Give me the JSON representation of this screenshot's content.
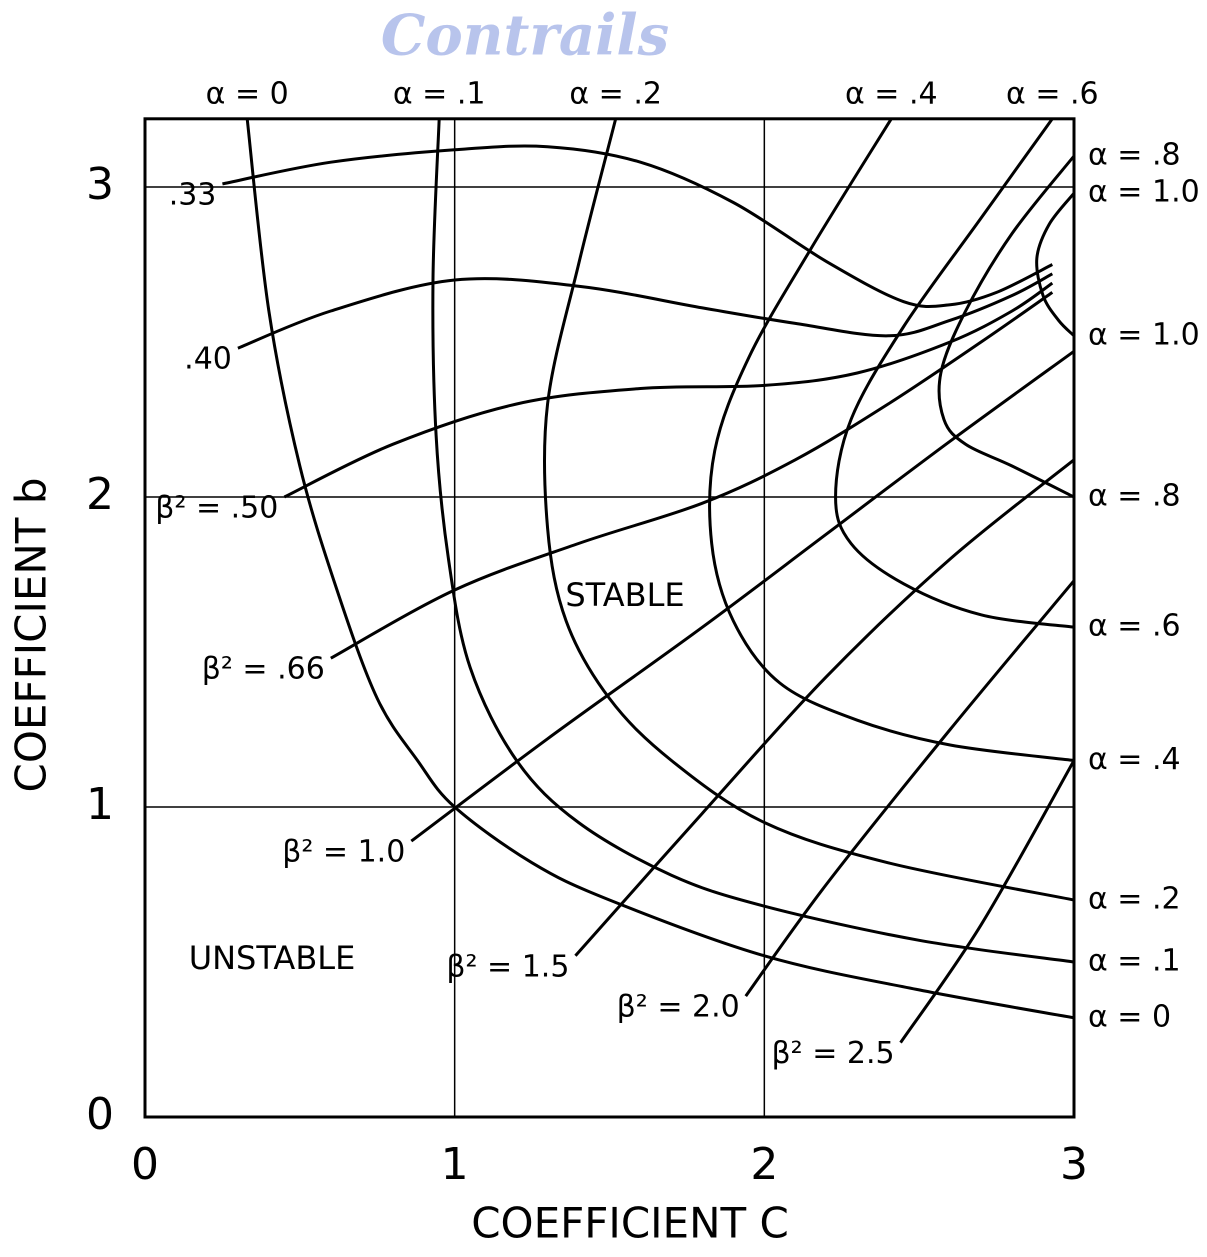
{
  "chart_data": {
    "type": "line",
    "watermark": "Contrails",
    "xlabel": "COEFFICIENT C",
    "ylabel": "COEFFICIENT b",
    "annotations": [
      "STABLE",
      "UNSTABLE"
    ],
    "xlim": [
      0,
      3
    ],
    "ylim": [
      0,
      3.22
    ],
    "xticks": [
      0,
      1,
      2,
      3
    ],
    "yticks": [
      0,
      1,
      2,
      3
    ],
    "grid": true,
    "color": "#000000",
    "series": [
      {
        "name": "α = 0",
        "x": [
          0.33,
          0.4,
          0.5,
          0.62,
          0.75,
          0.88,
          1.0,
          1.25,
          1.5,
          2.0,
          2.5,
          3.0
        ],
        "values": [
          3.22,
          2.6,
          2.1,
          1.7,
          1.35,
          1.15,
          1.0,
          0.82,
          0.7,
          0.52,
          0.41,
          0.32
        ]
      },
      {
        "name": "α = .1",
        "x": [
          0.95,
          0.93,
          0.94,
          0.98,
          1.05,
          1.2,
          1.4,
          1.7,
          2.0,
          2.5,
          3.0
        ],
        "values": [
          3.22,
          2.7,
          2.2,
          1.8,
          1.45,
          1.15,
          0.95,
          0.78,
          0.68,
          0.57,
          0.5
        ]
      },
      {
        "name": "α = .2",
        "x": [
          1.52,
          1.4,
          1.3,
          1.3,
          1.36,
          1.5,
          1.7,
          2.0,
          2.4,
          3.0
        ],
        "values": [
          3.22,
          2.75,
          2.3,
          1.9,
          1.6,
          1.35,
          1.15,
          0.95,
          0.82,
          0.7
        ]
      },
      {
        "name": "α = .4",
        "x": [
          2.41,
          2.15,
          1.95,
          1.84,
          1.83,
          1.9,
          2.05,
          2.3,
          2.6,
          3.0
        ],
        "values": [
          3.22,
          2.8,
          2.45,
          2.15,
          1.85,
          1.6,
          1.4,
          1.28,
          1.2,
          1.15
        ]
      },
      {
        "name": "α = .6",
        "x": [
          2.93,
          2.7,
          2.45,
          2.28,
          2.23,
          2.28,
          2.45,
          2.7,
          3.0
        ],
        "values": [
          3.22,
          2.9,
          2.55,
          2.25,
          2.0,
          1.85,
          1.72,
          1.62,
          1.58
        ]
      },
      {
        "name": "α = .8",
        "x": [
          3.0,
          2.8,
          2.65,
          2.57,
          2.58,
          2.65,
          2.8,
          3.0
        ],
        "values": [
          3.1,
          2.85,
          2.6,
          2.4,
          2.25,
          2.17,
          2.1,
          2.0
        ]
      },
      {
        "name": "α = 1.0",
        "x": [
          3.0,
          2.92,
          2.88,
          2.9,
          2.95,
          3.0
        ],
        "values": [
          2.98,
          2.88,
          2.77,
          2.65,
          2.57,
          2.52
        ]
      },
      {
        "name": ".33",
        "x": [
          0.25,
          0.6,
          1.0,
          1.3,
          1.6,
          1.9,
          2.2,
          2.45,
          2.6,
          2.75,
          2.93
        ],
        "values": [
          3.01,
          3.08,
          3.12,
          3.13,
          3.08,
          2.95,
          2.76,
          2.63,
          2.62,
          2.66,
          2.75
        ]
      },
      {
        "name": ".40",
        "x": [
          0.3,
          0.6,
          1.0,
          1.4,
          1.8,
          2.1,
          2.4,
          2.6,
          2.8,
          2.93
        ],
        "values": [
          2.48,
          2.6,
          2.7,
          2.68,
          2.61,
          2.56,
          2.52,
          2.57,
          2.65,
          2.72
        ]
      },
      {
        "name": "β² = .50",
        "x": [
          0.45,
          0.8,
          1.2,
          1.6,
          2.0,
          2.3,
          2.6,
          2.8,
          2.93
        ],
        "values": [
          2.0,
          2.17,
          2.3,
          2.35,
          2.36,
          2.4,
          2.5,
          2.6,
          2.69
        ]
      },
      {
        "name": "β² = .66",
        "x": [
          0.6,
          1.0,
          1.4,
          1.8,
          2.1,
          2.4,
          2.7,
          2.93
        ],
        "values": [
          1.48,
          1.7,
          1.85,
          1.98,
          2.12,
          2.3,
          2.5,
          2.66
        ]
      },
      {
        "name": "β² = 1.0",
        "x": [
          0.86,
          1.3,
          1.8,
          2.2,
          2.6,
          3.0
        ],
        "values": [
          0.89,
          1.22,
          1.58,
          1.88,
          2.18,
          2.47
        ]
      },
      {
        "name": "β² = 1.5",
        "x": [
          1.39,
          1.8,
          2.2,
          2.6,
          3.0
        ],
        "values": [
          0.52,
          0.98,
          1.42,
          1.8,
          2.12
        ]
      },
      {
        "name": "β² = 2.0",
        "x": [
          1.94,
          2.2,
          2.6,
          3.0
        ],
        "values": [
          0.39,
          0.75,
          1.25,
          1.73
        ]
      },
      {
        "name": "β² = 2.5",
        "x": [
          2.44,
          2.7,
          3.0
        ],
        "values": [
          0.24,
          0.62,
          1.15
        ]
      }
    ]
  }
}
